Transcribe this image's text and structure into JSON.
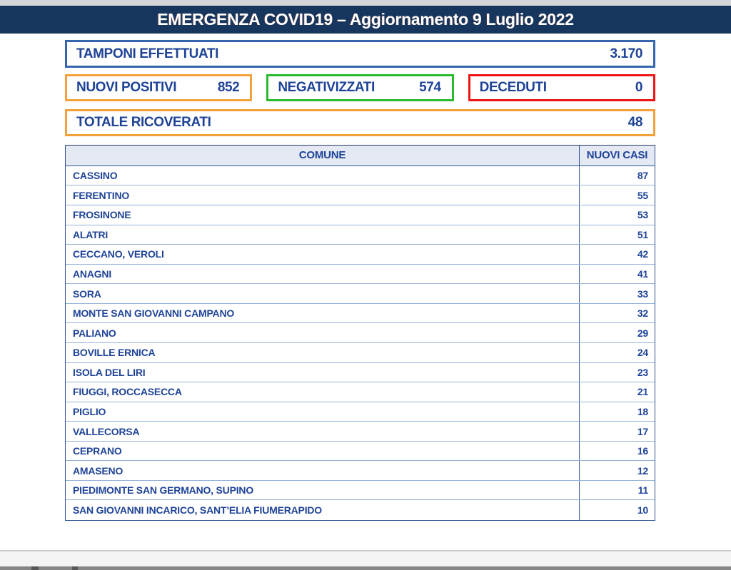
{
  "colors": {
    "header_bg": "#17365d",
    "text_blue": "#1e4397",
    "border_blue": "#3465ae",
    "border_orange": "#f2a13d",
    "border_green": "#2eb82e",
    "border_red": "#ee1515",
    "table_header_bg": "#e4e9f4",
    "table_row_line": "#95b3d7"
  },
  "header": {
    "title": "EMERGENZA COVID19 – Aggiornamento 9 Luglio 2022"
  },
  "stats": {
    "tamponi": {
      "label": "TAMPONI EFFETTUATI",
      "value": "3.170"
    },
    "nuovi_positivi": {
      "label": "NUOVI POSITIVI",
      "value": "852"
    },
    "negativizzati": {
      "label": "NEGATIVIZZATI",
      "value": "574"
    },
    "deceduti": {
      "label": "DECEDUTI",
      "value": "0"
    },
    "totale_ricoverati": {
      "label": "TOTALE RICOVERATI",
      "value": "48"
    }
  },
  "table": {
    "headers": {
      "comune": "COMUNE",
      "nuovi_casi": "NUOVI CASI"
    },
    "rows": [
      {
        "comune": "CASSINO",
        "casi": "87"
      },
      {
        "comune": "FERENTINO",
        "casi": "55"
      },
      {
        "comune": "FROSINONE",
        "casi": "53"
      },
      {
        "comune": "ALATRI",
        "casi": "51"
      },
      {
        "comune": "CECCANO, VEROLI",
        "casi": "42"
      },
      {
        "comune": "ANAGNI",
        "casi": "41"
      },
      {
        "comune": "SORA",
        "casi": "33"
      },
      {
        "comune": "MONTE SAN GIOVANNI CAMPANO",
        "casi": "32"
      },
      {
        "comune": "PALIANO",
        "casi": "29"
      },
      {
        "comune": "BOVILLE ERNICA",
        "casi": "24"
      },
      {
        "comune": "ISOLA DEL LIRI",
        "casi": "23"
      },
      {
        "comune": "FIUGGI, ROCCASECCA",
        "casi": "21"
      },
      {
        "comune": "PIGLIO",
        "casi": "18"
      },
      {
        "comune": "VALLECORSA",
        "casi": "17"
      },
      {
        "comune": "CEPRANO",
        "casi": "16"
      },
      {
        "comune": "AMASENO",
        "casi": "12"
      },
      {
        "comune": "PIEDIMONTE SAN GERMANO, SUPINO",
        "casi": "11"
      },
      {
        "comune": "SAN GIOVANNI INCARICO, SANT’ELIA FIUMERAPIDO",
        "casi": "10"
      }
    ]
  }
}
